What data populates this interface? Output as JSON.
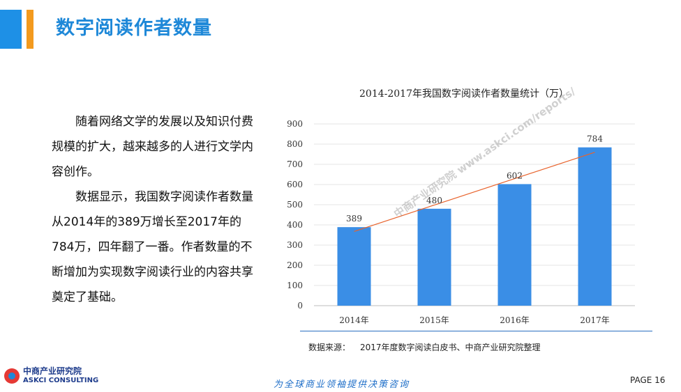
{
  "header": {
    "title": "数字阅读作者数量"
  },
  "body": {
    "paragraphs": [
      "随着网络文学的发展以及知识付费规模的扩大，越来越多的人进行文学内容创作。",
      "数据显示，我国数字阅读作者数量从2014年的389万增长至2017年的784万，四年翻了一番。作者数量的不断增加为实现数字阅读行业的内容共享奠定了基础。"
    ]
  },
  "chart_data": {
    "type": "bar",
    "title": "2014-2017年我国数字阅读作者数量统计（万）",
    "categories": [
      "2014年",
      "2015年",
      "2016年",
      "2017年"
    ],
    "values": [
      389,
      480,
      602,
      784
    ],
    "data_labels": [
      "389",
      "480",
      "602",
      "784"
    ],
    "yticks": [
      "0",
      "100",
      "200",
      "300",
      "400",
      "500",
      "600",
      "700",
      "800",
      "900"
    ],
    "ylim": [
      0,
      900
    ],
    "grid": true,
    "trendline": true,
    "bar_color": "#3a8ee6",
    "trend_color": "#e8622b"
  },
  "source": {
    "label": "数据来源：",
    "text": "2017年度数字阅读白皮书、中商产业研究院整理"
  },
  "footer": {
    "logo_cn": "中商产业研究院",
    "logo_en": "ASKCI CONSULTING",
    "slogan": "为全球商业领袖提供决策咨询",
    "page": "PAGE  16"
  },
  "watermark": {
    "text": "中商产业研究院 www.askci.com/reports/"
  },
  "colors": {
    "accent": "#1e88d8",
    "accent2": "#f39a1e"
  }
}
